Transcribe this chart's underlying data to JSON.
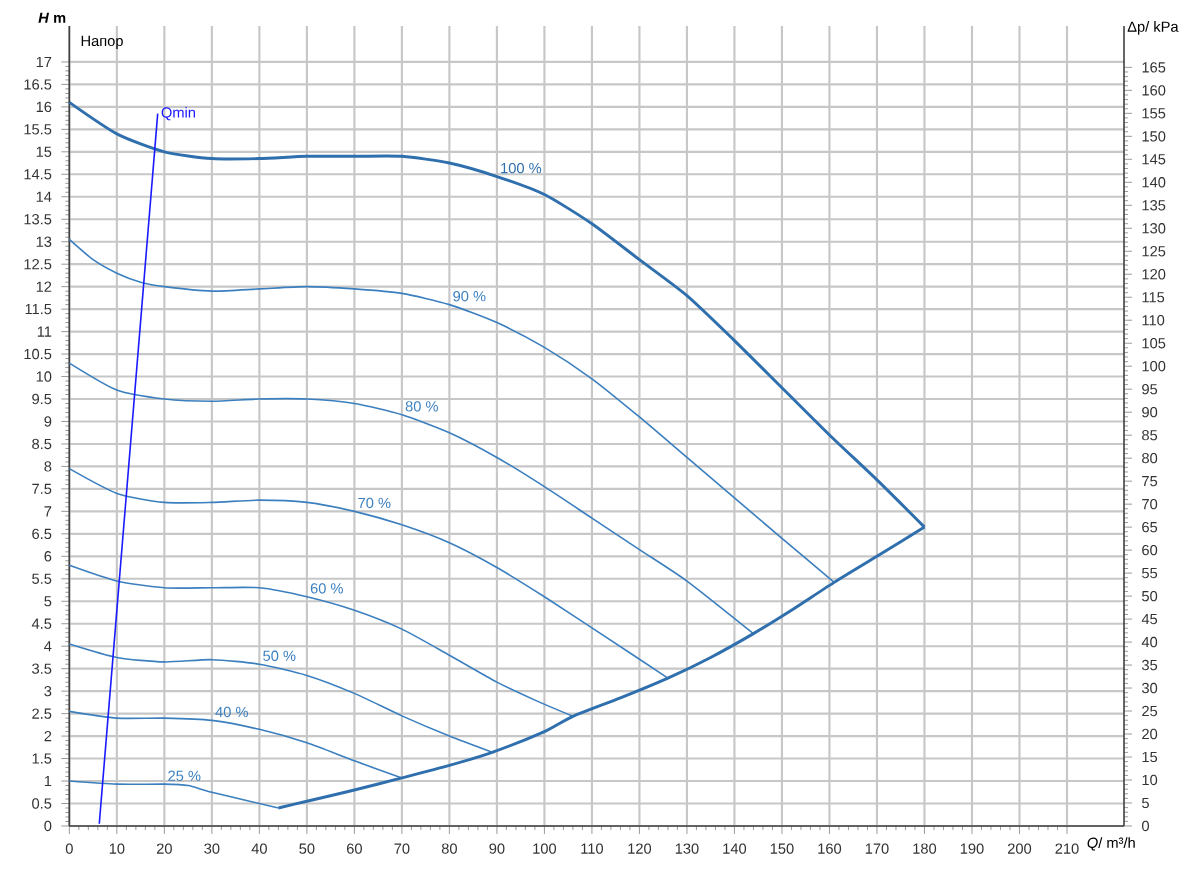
{
  "chart_data": {
    "type": "line",
    "ylabel": "*H* m",
    "xlabel": "*Q*/ m³/h",
    "y2label": "Δp/ kPa",
    "annotations": [
      "Напор"
    ],
    "xlim": [
      0,
      222
    ],
    "xticks": [
      0,
      10,
      20,
      30,
      40,
      50,
      60,
      70,
      80,
      90,
      100,
      110,
      120,
      130,
      140,
      150,
      160,
      170,
      180,
      190,
      200,
      210
    ],
    "ylim": [
      0,
      17.8
    ],
    "yticks": [
      0,
      0.5,
      1,
      1.5,
      2,
      2.5,
      3,
      3.5,
      4,
      4.5,
      5,
      5.5,
      6,
      6.5,
      7,
      7.5,
      8,
      8.5,
      9,
      9.5,
      10,
      10.5,
      11,
      11.5,
      12,
      12.5,
      13,
      13.5,
      14,
      14.5,
      15,
      15.5,
      16,
      16.5,
      17
    ],
    "y2lim": [
      0,
      174
    ],
    "y2ticks": [
      0,
      5,
      10,
      15,
      20,
      25,
      30,
      35,
      40,
      45,
      50,
      55,
      60,
      65,
      70,
      75,
      80,
      85,
      90,
      95,
      100,
      105,
      110,
      115,
      120,
      125,
      130,
      135,
      140,
      145,
      150,
      155,
      160,
      165
    ],
    "grid": true,
    "marker": "none",
    "line_style": "solid",
    "series": [
      {
        "name": "100 %",
        "color": "#2f6fad",
        "x": [
          0,
          10,
          20,
          30,
          40,
          50,
          60,
          70,
          80,
          90,
          100,
          110,
          120,
          130,
          140,
          150,
          160,
          170,
          180
        ],
        "values": [
          16.1,
          15.4,
          15.0,
          14.85,
          14.85,
          14.9,
          14.9,
          14.9,
          14.75,
          14.45,
          14.05,
          13.4,
          12.6,
          11.8,
          10.8,
          9.75,
          8.7,
          7.7,
          6.65
        ]
      },
      {
        "name": "90 %",
        "color": "#3b7fbf",
        "x": [
          0,
          5,
          10,
          15,
          20,
          30,
          40,
          50,
          60,
          70,
          80,
          90,
          100,
          110,
          120,
          130,
          140,
          150,
          161
        ],
        "values": [
          13.05,
          12.6,
          12.3,
          12.1,
          12.0,
          11.9,
          11.95,
          12.0,
          11.95,
          11.85,
          11.6,
          11.2,
          10.65,
          9.95,
          9.1,
          8.2,
          7.3,
          6.4,
          5.42
        ]
      },
      {
        "name": "80 %",
        "color": "#3b7fbf",
        "x": [
          0,
          10,
          20,
          30,
          40,
          50,
          60,
          70,
          80,
          90,
          100,
          110,
          120,
          130,
          144
        ],
        "values": [
          10.3,
          9.7,
          9.5,
          9.45,
          9.5,
          9.5,
          9.4,
          9.15,
          8.75,
          8.2,
          7.55,
          6.85,
          6.15,
          5.45,
          4.28
        ]
      },
      {
        "name": "70 %",
        "color": "#3b7fbf",
        "x": [
          0,
          10,
          20,
          30,
          40,
          50,
          60,
          70,
          80,
          90,
          100,
          112,
          126
        ],
        "values": [
          7.95,
          7.4,
          7.2,
          7.2,
          7.25,
          7.2,
          7.0,
          6.7,
          6.3,
          5.75,
          5.1,
          4.27,
          3.29
        ]
      },
      {
        "name": "60 %",
        "color": "#3b7fbf",
        "x": [
          0,
          10,
          20,
          30,
          40,
          50,
          60,
          70,
          80,
          90,
          98,
          106
        ],
        "values": [
          5.8,
          5.45,
          5.3,
          5.3,
          5.3,
          5.1,
          4.8,
          4.38,
          3.8,
          3.2,
          2.8,
          2.44
        ]
      },
      {
        "name": "50 %",
        "color": "#3b7fbf",
        "x": [
          0,
          10,
          20,
          30,
          40,
          50,
          60,
          70,
          80,
          89
        ],
        "values": [
          4.05,
          3.75,
          3.65,
          3.7,
          3.6,
          3.35,
          2.95,
          2.45,
          2.0,
          1.64
        ]
      },
      {
        "name": "40 %",
        "color": "#3b7fbf",
        "x": [
          0,
          10,
          20,
          30,
          40,
          50,
          60,
          70
        ],
        "values": [
          2.55,
          2.4,
          2.4,
          2.35,
          2.15,
          1.85,
          1.45,
          1.07
        ]
      },
      {
        "name": "25 %",
        "color": "#3b7fbf",
        "x": [
          0,
          10,
          20,
          25,
          30,
          44
        ],
        "values": [
          1.0,
          0.93,
          0.93,
          0.9,
          0.75,
          0.4
        ]
      },
      {
        "color": "#2f6fad",
        "x": [
          44,
          50,
          60,
          70,
          80,
          89,
          100,
          106,
          116,
          126,
          135,
          144,
          152,
          161,
          170,
          180
        ],
        "values": [
          0.4,
          0.55,
          0.8,
          1.07,
          1.35,
          1.64,
          2.1,
          2.44,
          2.85,
          3.29,
          3.75,
          4.28,
          4.8,
          5.42,
          6.0,
          6.65
        ]
      },
      {
        "name": "Qmin",
        "color": "#1a1aff",
        "x": [
          6.3,
          18.6
        ],
        "values": [
          0.05,
          15.85
        ]
      }
    ]
  }
}
